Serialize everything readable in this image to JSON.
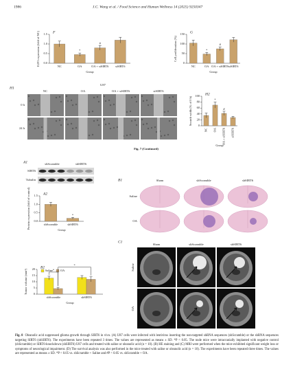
{
  "header": {
    "page": "1986",
    "journal": "J.C. Wang et al. / Food Science and Human Wellness 14 (2025) 9250347"
  },
  "chart_data": [
    {
      "type": "bar",
      "panel": "F",
      "ylabel": "E2F3 expression (fold of NC)",
      "xlabel": "Group",
      "categories": [
        "NC",
        "OA",
        "OA + siSIRT6",
        "siSIRT6"
      ],
      "values": [
        1.0,
        0.45,
        0.8,
        1.2
      ],
      "errors": [
        0.15,
        0.08,
        0.12,
        0.15
      ],
      "bar_labels": [
        null,
        "*",
        "#",
        null
      ],
      "color": "#c9a26b",
      "ylim": [
        0,
        1.5
      ],
      "yticks": [
        {
          "value": 0,
          "label": "0.0"
        },
        0.5,
        {
          "value": 1,
          "label": "1.0"
        },
        1.5
      ]
    },
    {
      "type": "bar",
      "panel": "G",
      "ylabel": "Cell proliferation (%)",
      "xlabel": "Group",
      "categories": [
        "NC",
        "OA",
        "OA + siSIRT6",
        "siSIRT6"
      ],
      "values": [
        105,
        48,
        75,
        122
      ],
      "errors": [
        15,
        8,
        10,
        12
      ],
      "bar_labels": [
        null,
        "*",
        "#",
        null
      ],
      "color": "#c9a26b",
      "ylim": [
        0,
        150
      ],
      "yticks": [
        0,
        50,
        100,
        150
      ]
    },
    {
      "type": "bar",
      "panel": "H2",
      "ylabel": "Scratch width (% of 0 h)",
      "xlabel": "Group",
      "categories": [
        "NC",
        "OA",
        "OA + siSIRT6",
        "siSIRT6"
      ],
      "values": [
        35,
        70,
        42,
        28
      ],
      "errors": [
        8,
        10,
        7,
        4
      ],
      "bar_labels": [
        null,
        "*",
        "#",
        null
      ],
      "color": "#c9a26b",
      "ylim": [
        0,
        100
      ],
      "yticks": [
        0,
        20,
        40,
        60,
        80,
        100
      ]
    },
    {
      "type": "bar",
      "panel": "A2",
      "ylabel": "Protein expression (fold of control)",
      "xlabel": "Group",
      "categories": [
        "shScramble",
        "shSIRT6"
      ],
      "values": [
        1.0,
        0.18
      ],
      "errors": [
        0.12,
        0.05
      ],
      "bar_labels": [
        null,
        "*"
      ],
      "color": "#c9a26b",
      "ylim": [
        0,
        1.5
      ],
      "yticks": [
        {
          "value": 0,
          "label": "0.0"
        },
        0.5,
        {
          "value": 1,
          "label": "1.0"
        },
        1.5
      ]
    },
    {
      "type": "bar",
      "panel": "B2",
      "ylabel": "Tumor volume (mm³)",
      "xlabel": "Group",
      "categories": [
        "shScramble",
        "shSIRT6"
      ],
      "series": [
        {
          "name": "Saline",
          "color": "#f2e01b",
          "values": [
            13,
            13.5
          ],
          "errors": [
            1.5,
            1.5
          ]
        },
        {
          "name": "OA",
          "color": "#c9a26b",
          "values": [
            4.5,
            12
          ],
          "errors": [
            1,
            2
          ]
        }
      ],
      "annotations": [
        "*",
        "*"
      ],
      "ylim": [
        0,
        20
      ],
      "yticks": [
        0,
        5,
        10,
        15,
        20
      ]
    }
  ],
  "figure7": {
    "panel": "H1",
    "cell_line": "U87",
    "columns": [
      "NC",
      "OA",
      "OA + siSIRT6",
      "siSIRT6"
    ],
    "rows": [
      "0 h",
      "24 h"
    ],
    "caption": "Fig. 7 (Continued)"
  },
  "figure8": {
    "blot": {
      "panel": "A1",
      "columns": [
        "shScramble",
        "shSIRT6"
      ],
      "rows": [
        "SIRT6",
        "Tubulin"
      ]
    },
    "histology": {
      "panel": "B1",
      "columns": [
        "Sham",
        "shScramble",
        "shSIRT6"
      ],
      "rows": [
        "Saline",
        "OA"
      ]
    },
    "mri": {
      "panel": "C1",
      "columns": [
        "Sham",
        "shScramble",
        "shSIRT6"
      ],
      "rows": [
        "Saline",
        "OA"
      ]
    },
    "caption": {
      "label": "Fig. 8",
      "text": "Oleanolic acid suppressed glioma growth through SIRT6 in vivo. (A) U87 cells were infected with lentivirus inserting the non-targeted shRNA sequences (shScramble) or the shRNA sequences targeting SIRT6 (shSIRT6). The experiments have been repeated 3 times. The values are represented as means ± SD. *P < 0.05. The nude mice were intracranially implanted with negative control (shScramble) or SIRT6-knockdown (shSIRT6) U87 cells and treated with saline or oleanolic acid (n = 10). (B) HE staining and (C) MRI were performed when the mice exhibited significant weight loss or symptoms of neurological impairment. (D) The survival analysis was also performed in the mice treated with saline or oleanolic acid (n = 10). The experiments have been repeated three times. The values are represented as means ± SD. *P < 0.05 vs. shScramble + Saline and #P < 0.05 vs. shScramble + OA."
    }
  }
}
